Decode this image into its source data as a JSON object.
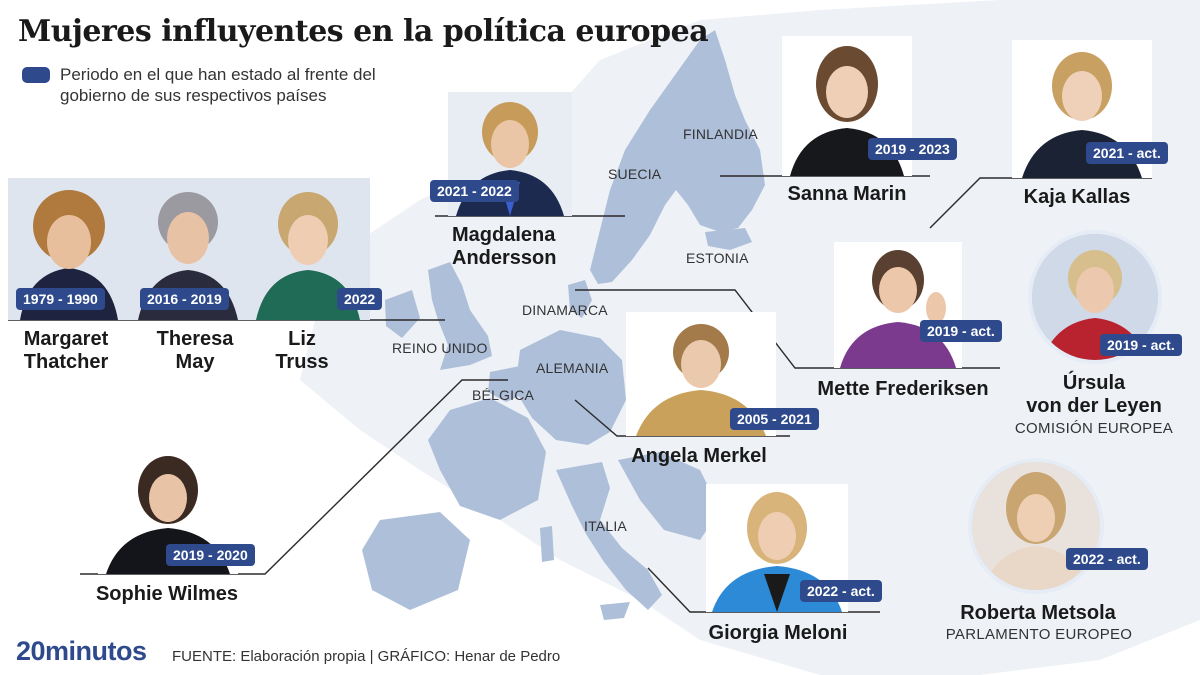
{
  "title": "Mujeres influyentes en la política europea",
  "legend": {
    "text": "Periodo en el que han estado al frente del gobierno de sus respectivos países",
    "color": "#2f4a8c"
  },
  "colors": {
    "accent": "#2f4a8c",
    "map_highlight": "#aebfd9",
    "map_background": "#eef2f7"
  },
  "countries": {
    "finlandia": "FINLANDIA",
    "suecia": "SUECIA",
    "estonia": "ESTONIA",
    "dinamarca": "DINAMARCA",
    "reino_unido": "REINO UNIDO",
    "alemania": "ALEMANIA",
    "belgica": "BÉLGICA",
    "italia": "ITALIA"
  },
  "people": {
    "thatcher": {
      "name_line1": "Margaret",
      "name_line2": "Thatcher",
      "period": "1979 - 1990"
    },
    "may": {
      "name_line1": "Theresa",
      "name_line2": "May",
      "period": "2016 - 2019"
    },
    "truss": {
      "name_line1": "Liz",
      "name_line2": "Truss",
      "period": "2022"
    },
    "andersson": {
      "name_line1": "Magdalena",
      "name_line2": "Andersson",
      "period": "2021 - 2022"
    },
    "marin": {
      "name": "Sanna Marin",
      "period": "2019 - 2023"
    },
    "kallas": {
      "name": "Kaja Kallas",
      "period": "2021 - act."
    },
    "frederiksen": {
      "name": "Mette Frederiksen",
      "period": "2019 - act."
    },
    "von_der_leyen": {
      "name_line1": "Úrsula",
      "name_line2": "von der Leyen",
      "institution": "COMISIÓN EUROPEA",
      "period": "2019 - act."
    },
    "merkel": {
      "name": "Angela Merkel",
      "period": "2005 - 2021"
    },
    "wilmes": {
      "name": "Sophie Wilmes",
      "period": "2019 - 2020"
    },
    "meloni": {
      "name": "Giorgia Meloni",
      "period": "2022 - act."
    },
    "metsola": {
      "name": "Roberta Metsola",
      "institution": "PARLAMENTO EUROPEO",
      "period": "2022 - act."
    }
  },
  "footer": {
    "logo": "20minutos",
    "source": "FUENTE: Elaboración propia  |  GRÁFICO: Henar de Pedro"
  }
}
